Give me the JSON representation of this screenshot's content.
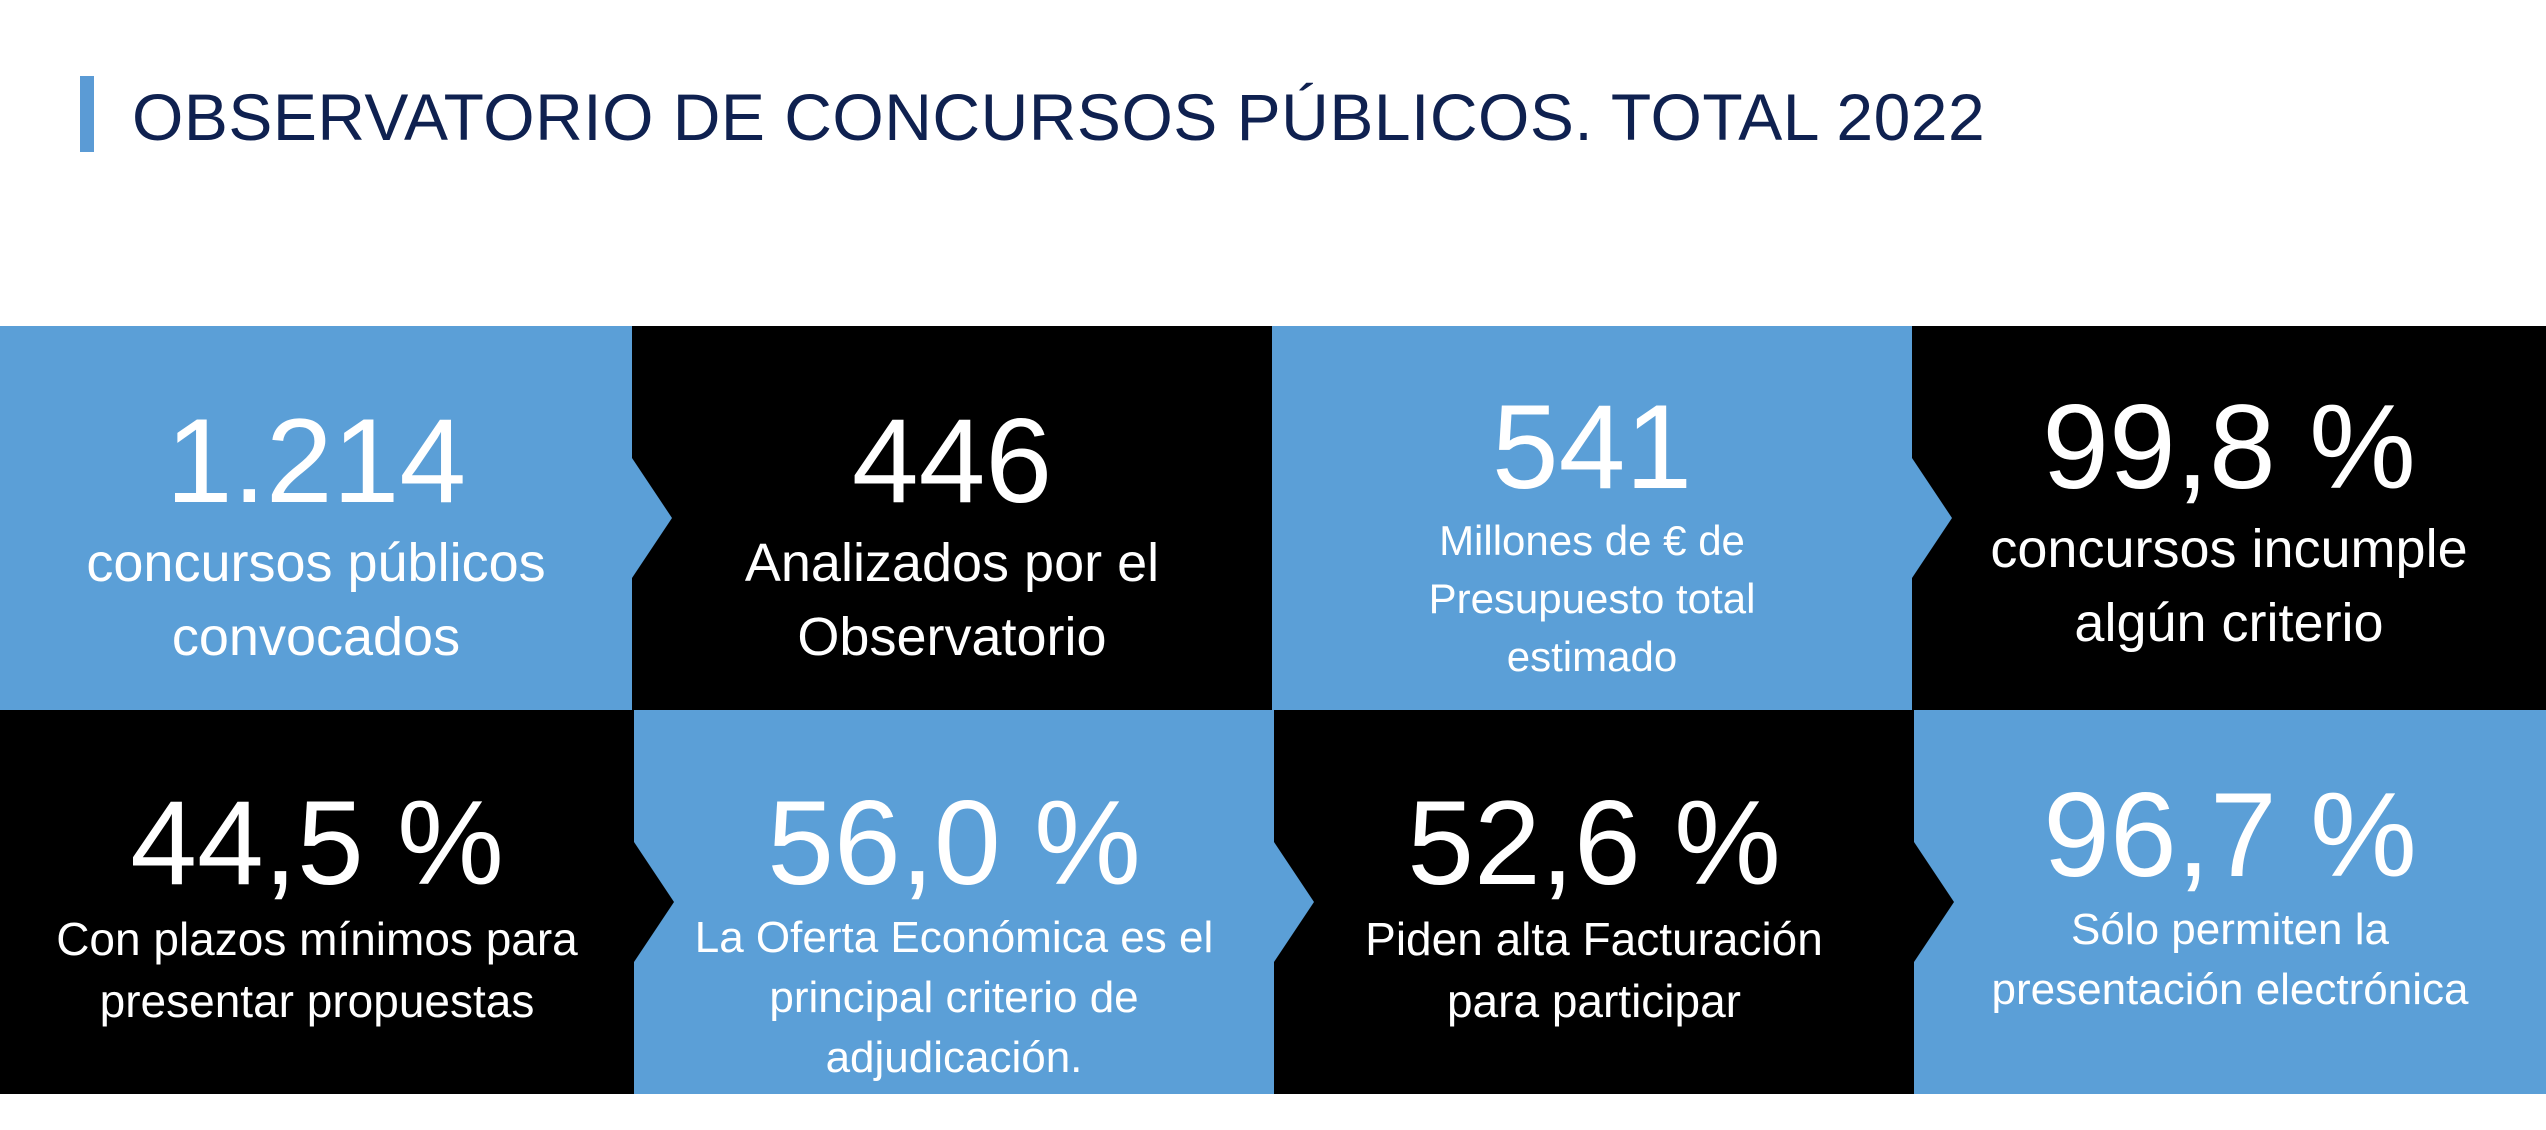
{
  "header": {
    "title": "OBSERVATORIO DE CONCURSOS PÚBLICOS. TOTAL 2022"
  },
  "colors": {
    "accent_blue": "#5b9fd7",
    "title_navy": "#0f2150",
    "tile_black": "#000000"
  },
  "tiles": [
    {
      "value": "1.214",
      "line1": "concursos públicos",
      "line2": "convocados",
      "line3": ""
    },
    {
      "value": "446",
      "line1": "Analizados por el",
      "line2": "Observatorio",
      "line3": ""
    },
    {
      "value": "541",
      "line1": "Millones de € de",
      "line2": "Presupuesto total",
      "line3": "estimado"
    },
    {
      "value": "99,8 %",
      "line1": "concursos incumple",
      "line2": "algún criterio",
      "line3": ""
    },
    {
      "value": "44,5 %",
      "line1": "Con plazos mínimos para",
      "line2": "presentar propuestas",
      "line3": ""
    },
    {
      "value": "56,0 %",
      "line1": "La Oferta Económica es el",
      "line2": "principal criterio de",
      "line3": "adjudicación."
    },
    {
      "value": "52,6 %",
      "line1": "Piden alta Facturación",
      "line2": "para participar",
      "line3": ""
    },
    {
      "value": "96,7 %",
      "line1": "Sólo permiten la",
      "line2": "presentación electrónica",
      "line3": ""
    }
  ]
}
